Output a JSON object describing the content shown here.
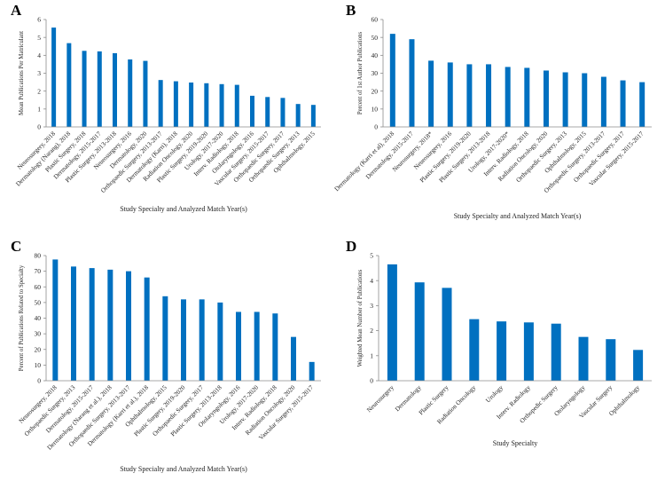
{
  "chart_data": [
    {
      "type": "bar",
      "panel": "A",
      "ylabel": "Mean Publications Per Matriculant",
      "xlabel": "Study Specialty and Analyzed Match Year(s)",
      "ylim": [
        0,
        6
      ],
      "yticks": [
        0,
        1,
        2,
        3,
        4,
        5,
        6
      ],
      "color": "#0070C0",
      "categories": [
        "Neurosurgery, 2018",
        "Dermatology (Narang), 2018",
        "Plastic Surgery, 2018",
        "Dermatology, 2015-2017",
        "Plastic Surgery, 2013-2018",
        "Neurosurgery, 2016",
        "Dermatology, 2020",
        "Orthopaedic Surgery, 2013-2017",
        "Dermatology (Karri), 2018",
        "Radiation Oncology, 2020",
        "Plastic Surgery, 2019-2020",
        "Urology, 2017-2020",
        "Interv. Radiology, 2018",
        "Otolaryngology, 2016",
        "Vascular Surgery, 2015-2017",
        "Orthopaedic Surgery, 2017",
        "Orthopaedic Surgery, 2013",
        "Ophthalmology, 2015"
      ],
      "values": [
        5.55,
        4.68,
        4.25,
        4.22,
        4.12,
        3.77,
        3.69,
        2.62,
        2.55,
        2.48,
        2.44,
        2.39,
        2.35,
        1.74,
        1.67,
        1.62,
        1.28,
        1.23
      ]
    },
    {
      "type": "bar",
      "panel": "B",
      "ylabel": "Percent of 1st Author Publications",
      "xlabel": "Study Specialty and Analyzed Match Year(s)",
      "ylim": [
        0,
        60
      ],
      "yticks": [
        0,
        10,
        20,
        30,
        40,
        50,
        60
      ],
      "color": "#0070C0",
      "categories": [
        "Dermatology (Karri et al), 2018",
        "Dermatology, 2015-2017",
        "Neurosurgery, 2018*",
        "Neurosurgery, 2016",
        "Plastic Surgery, 2019-2020",
        "Plastic Surgery, 2013-2018",
        "Urology, 2017-2020*",
        "Interv. Radiology, 2018",
        "Radiation Oncology, 2020",
        "Orthopaedic Surgery, 2013",
        "Ophthalmology, 2015",
        "Orthopaedic Surgery, 2013-2017",
        "Orthopaedic Surgery, 2017",
        "Vascular Surgery, 2015-2017"
      ],
      "values": [
        52,
        49,
        37,
        36,
        35,
        35,
        33.5,
        33,
        31.5,
        30.5,
        30,
        28,
        26,
        25
      ]
    },
    {
      "type": "bar",
      "panel": "C",
      "ylabel": "Percent of Publications Related to Specialty",
      "xlabel": "Study Specialty and Analyzed Match Year(s)",
      "ylim": [
        0,
        80
      ],
      "yticks": [
        0,
        10,
        20,
        30,
        40,
        50,
        60,
        70,
        80
      ],
      "color": "#0070C0",
      "categories": [
        "Neurosurgery, 2018",
        "Orthopaedic Surgery, 2013",
        "Dermatology, 2015-2017",
        "Dermatology (Narang et al.), 2018",
        "Orthopaedic Surgery, 2013-2017",
        "Dermatology (Karri et al.), 2018",
        "Ophthalmology, 2015",
        "Plastic Surgery, 2019-2020",
        "Orthopaedic Surgery, 2017",
        "Plastic Surgery, 2013-2018",
        "Otolaryngology, 2016",
        "Urology, 2017-2020",
        "Interv. Radiology, 2018",
        "Radiation Oncology, 2020",
        "Vascular Surgery, 2015-2017"
      ],
      "values": [
        77.5,
        73,
        72,
        71,
        70,
        66,
        54,
        52,
        52,
        50,
        44,
        44,
        43,
        28,
        12
      ]
    },
    {
      "type": "bar",
      "panel": "D",
      "ylabel": "Weighted Mean Number of Publications",
      "xlabel": "Study Specialty",
      "ylim": [
        0,
        5
      ],
      "yticks": [
        0,
        1,
        2,
        3,
        4,
        5
      ],
      "color": "#0070C0",
      "categories": [
        "Neurosurgery",
        "Dermatology",
        "Plastic Surgery",
        "Radiation Oncology",
        "Urology",
        "Interv. Radiology",
        "Orthopedic Surgery",
        "Otolaryngology",
        "Vascular Surgery",
        "Ophthalmology"
      ],
      "values": [
        4.65,
        3.93,
        3.71,
        2.46,
        2.37,
        2.33,
        2.28,
        1.75,
        1.66,
        1.23
      ]
    }
  ]
}
